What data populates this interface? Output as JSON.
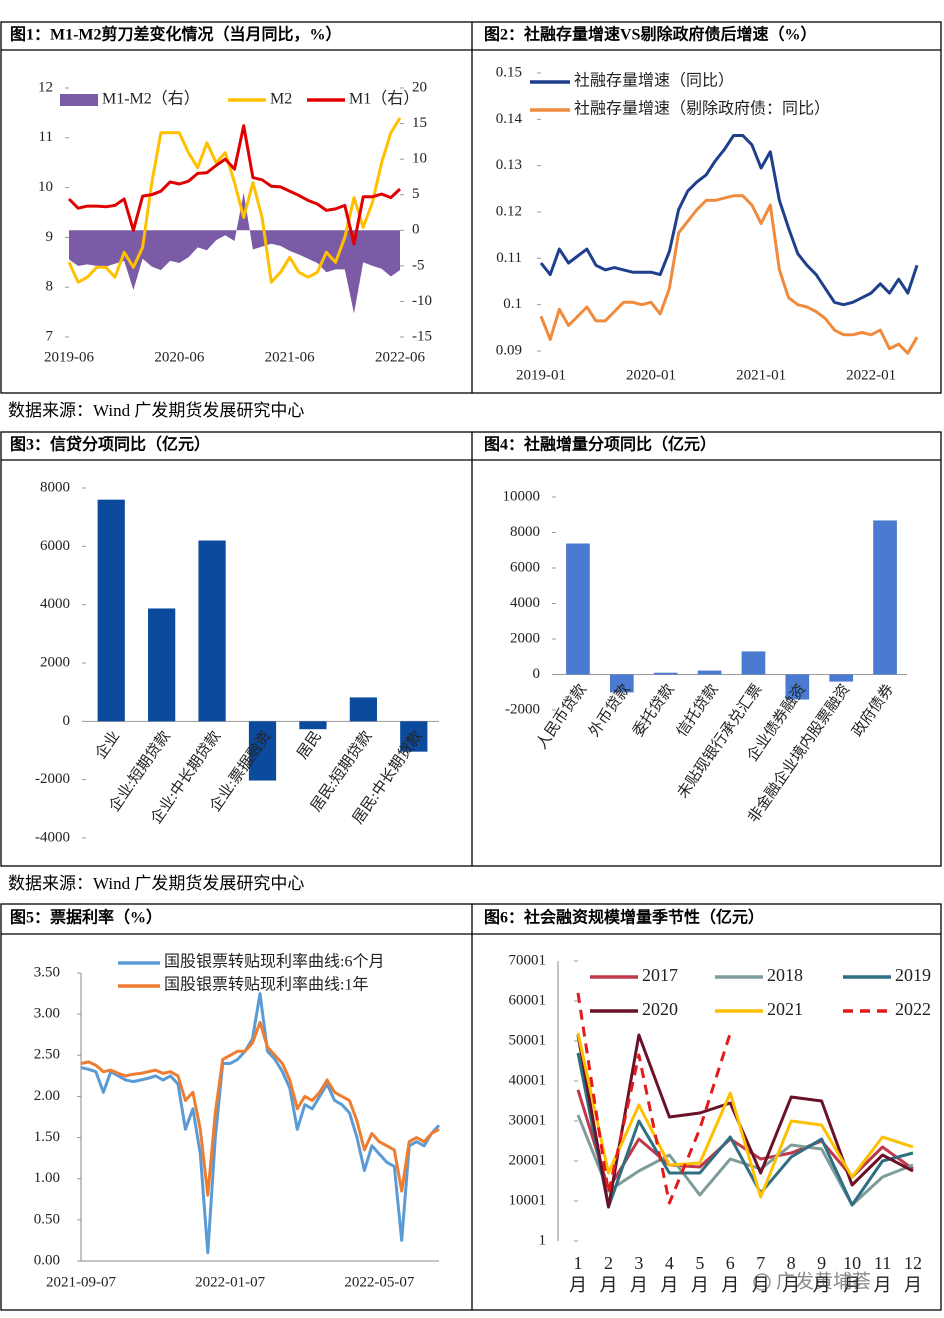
{
  "chart_data": [
    {
      "type": "line",
      "title": "图1：M1-M2剪刀差变化情况（当月同比，%）",
      "categories": [
        "2019-06",
        null,
        null,
        null,
        null,
        null,
        null,
        null,
        null,
        null,
        null,
        null,
        "2020-06",
        null,
        null,
        null,
        null,
        null,
        null,
        null,
        null,
        null,
        null,
        null,
        "2021-06",
        null,
        null,
        null,
        null,
        null,
        null,
        null,
        null,
        null,
        null,
        null,
        "2022-06"
      ],
      "ylim": [
        7,
        12
      ],
      "yticks": [
        7,
        8,
        9,
        10,
        11,
        12
      ],
      "y2lim": [
        -15,
        20
      ],
      "y2ticks": [
        -15,
        -10,
        -5,
        0,
        5,
        10,
        15,
        20
      ],
      "series": [
        {
          "name": "M1-M2（右）",
          "type": "area",
          "axis": "y2",
          "color": "#7b5aa6",
          "values": [
            -4.1,
            -5,
            -4.8,
            -5,
            -5.1,
            -4.7,
            -4.3,
            -8.4,
            -4,
            -5.1,
            -5.6,
            -4.3,
            -4.6,
            -3.8,
            -2.4,
            -2.8,
            -1.4,
            -0.7,
            -1.5,
            5.3,
            -2.7,
            -2.3,
            -1.9,
            -2.2,
            -2.9,
            -3.4,
            -4,
            -4.6,
            -5.9,
            -5.5,
            -5.5,
            -11.7,
            -4.5,
            -5,
            -5.4,
            -6.5,
            -5.6
          ]
        },
        {
          "name": "M2",
          "color": "#ffc000",
          "values": [
            8.5,
            8.1,
            8.2,
            8.4,
            8.4,
            8.2,
            8.7,
            8.4,
            8.8,
            10.1,
            11.1,
            11.1,
            11.1,
            10.7,
            10.4,
            10.9,
            10.5,
            10.7,
            10.1,
            9.4,
            10.1,
            9.4,
            8.1,
            8.3,
            8.6,
            8.3,
            8.2,
            8.3,
            8.7,
            8.5,
            9,
            9.8,
            9.2,
            9.7,
            10.5,
            11.1,
            11.4
          ]
        },
        {
          "name": "M1（右）",
          "axis": "y2",
          "color": "#e00000",
          "values": [
            4.4,
            3.1,
            3.4,
            3.4,
            3.3,
            3.5,
            4.4,
            0,
            4.8,
            5,
            5.5,
            6.8,
            6.5,
            6.9,
            8,
            8.1,
            9.1,
            10,
            8.6,
            14.7,
            7.4,
            7.1,
            6.2,
            6.1,
            5.5,
            4.9,
            4.2,
            3.7,
            2.8,
            3,
            3.5,
            -1.9,
            4.7,
            4.7,
            5.1,
            4.6,
            5.8
          ]
        }
      ]
    },
    {
      "type": "line",
      "title": "图2：社融存量增速VS剔除政府债后增速（%）",
      "categories": [
        "2019-01",
        null,
        null,
        null,
        null,
        null,
        null,
        null,
        null,
        null,
        null,
        null,
        "2020-01",
        null,
        null,
        null,
        null,
        null,
        null,
        null,
        null,
        null,
        null,
        null,
        "2021-01",
        null,
        null,
        null,
        null,
        null,
        null,
        null,
        null,
        null,
        null,
        null,
        "2022-01",
        null,
        null,
        null,
        null,
        null
      ],
      "ylim": [
        0.09,
        0.15
      ],
      "yticks": [
        0.09,
        0.1,
        0.11,
        0.12,
        0.13,
        0.14,
        0.15
      ],
      "series": [
        {
          "name": "社融存量增速（同比）",
          "color": "#1f3f8c",
          "values": [
            0.109,
            0.1065,
            0.112,
            0.109,
            0.1105,
            0.112,
            0.1085,
            0.1075,
            0.108,
            0.1075,
            0.107,
            0.107,
            0.107,
            0.1065,
            0.1115,
            0.1205,
            0.1245,
            0.1265,
            0.128,
            0.131,
            0.1335,
            0.1365,
            0.1365,
            0.1345,
            0.1295,
            0.133,
            0.1225,
            0.1165,
            0.111,
            0.1085,
            0.1065,
            0.1035,
            0.1005,
            0.1,
            0.1005,
            0.1015,
            0.1025,
            0.1045,
            0.1025,
            0.1055,
            0.1025,
            0.1085
          ]
        },
        {
          "name": "社融存量增速（剔除政府债：同比）",
          "color": "#f08a3c",
          "values": [
            0.0975,
            0.0925,
            0.099,
            0.0955,
            0.0975,
            0.0995,
            0.0965,
            0.0965,
            0.0985,
            0.1005,
            0.1005,
            0.1,
            0.1005,
            0.098,
            0.1035,
            0.1155,
            0.118,
            0.1205,
            0.1225,
            0.1225,
            0.123,
            0.1235,
            0.1235,
            0.1215,
            0.1175,
            0.1215,
            0.1075,
            0.1015,
            0.1,
            0.0995,
            0.0985,
            0.097,
            0.0945,
            0.0935,
            0.0935,
            0.094,
            0.0935,
            0.0945,
            0.0905,
            0.0915,
            0.0895,
            0.093
          ]
        }
      ]
    },
    {
      "type": "bar",
      "title": "图3：信贷分项同比（亿元）",
      "categories": [
        "企业",
        "企业:短期贷款",
        "企业:中长期贷款",
        "企业:票据融资",
        "居民",
        "居民:短期贷款",
        "居民:中长期贷款"
      ],
      "values": [
        7600,
        3870,
        6200,
        -2030,
        -270,
        820,
        -1040
      ],
      "color": "#0b4a9c",
      "ylim": [
        -4000,
        8000
      ],
      "yticks": [
        -4000,
        -2000,
        0,
        2000,
        4000,
        6000,
        8000
      ]
    },
    {
      "type": "bar",
      "title": "图4：社融增量分项同比（亿元）",
      "categories": [
        "人民币贷款",
        "外币贷款",
        "委托贷款",
        "信托贷款",
        "未贴现银行承兑汇票",
        "企业债券融资",
        "非金融企业境内股票融资",
        "政府债券"
      ],
      "values": [
        7380,
        -1010,
        100,
        220,
        1300,
        -1410,
        -400,
        8680
      ],
      "color": "#4a7bd0",
      "ylim": [
        -2000,
        10000
      ],
      "yticks": [
        -2000,
        0,
        2000,
        4000,
        6000,
        8000,
        10000
      ]
    },
    {
      "type": "line",
      "title": "图5：票据利率（%）",
      "categories": [
        "2021-09-07",
        null,
        null,
        null,
        null,
        null,
        null,
        null,
        null,
        null,
        null,
        null,
        null,
        null,
        null,
        null,
        null,
        null,
        null,
        null,
        "2022-01-07",
        null,
        null,
        null,
        null,
        null,
        null,
        null,
        null,
        null,
        null,
        null,
        null,
        null,
        null,
        null,
        null,
        null,
        null,
        null,
        "2022-05-07",
        null,
        null,
        null,
        null,
        null,
        null,
        null,
        null
      ],
      "ylim": [
        0,
        3.5
      ],
      "yticks": [
        {
          "value": 0,
          "label": "0.00"
        },
        {
          "value": 0.5,
          "label": "0.50"
        },
        {
          "value": 1,
          "label": "1.00"
        },
        {
          "value": 1.5,
          "label": "1.50"
        },
        {
          "value": 2,
          "label": "2.00"
        },
        {
          "value": 2.5,
          "label": "2.50"
        },
        {
          "value": 3,
          "label": "3.00"
        },
        {
          "value": 3.5,
          "label": "3.50"
        }
      ],
      "series": [
        {
          "name": "国股银票转贴现利率曲线:6个月",
          "color": "#5b9bd5",
          "values": [
            2.35,
            2.33,
            2.3,
            2.05,
            2.3,
            2.25,
            2.2,
            2.18,
            2.2,
            2.22,
            2.25,
            2.2,
            2.25,
            2.15,
            1.6,
            1.85,
            1.3,
            0.1,
            1.5,
            2.4,
            2.4,
            2.45,
            2.55,
            2.7,
            3.25,
            2.55,
            2.45,
            2.3,
            2.1,
            1.6,
            1.9,
            1.85,
            2,
            2.15,
            1.95,
            1.9,
            1.8,
            1.5,
            1.1,
            1.4,
            1.3,
            1.2,
            1.15,
            0.25,
            1.4,
            1.45,
            1.4,
            1.55,
            1.65
          ]
        },
        {
          "name": "国股银票转贴现利率曲线:1年",
          "color": "#ed7d31",
          "values": [
            2.4,
            2.42,
            2.38,
            2.3,
            2.32,
            2.28,
            2.25,
            2.27,
            2.28,
            2.3,
            2.32,
            2.28,
            2.3,
            2.25,
            1.95,
            2.05,
            1.6,
            0.8,
            1.8,
            2.45,
            2.5,
            2.55,
            2.55,
            2.65,
            2.9,
            2.6,
            2.5,
            2.4,
            2.2,
            1.85,
            2,
            1.95,
            2.05,
            2.2,
            2.05,
            2,
            1.95,
            1.7,
            1.35,
            1.55,
            1.45,
            1.4,
            1.35,
            0.85,
            1.45,
            1.5,
            1.45,
            1.55,
            1.6
          ]
        }
      ]
    },
    {
      "type": "line",
      "title": "图6：社会融资规模增量季节性（亿元）",
      "categories": [
        "1月",
        "2月",
        "3月",
        "4月",
        "5月",
        "6月",
        "7月",
        "8月",
        "9月",
        "10月",
        "11月",
        "12月"
      ],
      "ylim": [
        1,
        70001
      ],
      "yticks": [
        1,
        10001,
        20001,
        30001,
        40001,
        50001,
        60001,
        70001
      ],
      "series": [
        {
          "name": "2017",
          "color": "#c0394b",
          "values": [
            37800,
            13000,
            25500,
            19000,
            18500,
            25500,
            20500,
            22000,
            25000,
            16000,
            23500,
            18000
          ]
        },
        {
          "name": "2018",
          "color": "#7f9c9c",
          "values": [
            31500,
            12500,
            17500,
            21500,
            11500,
            20500,
            18000,
            24000,
            23000,
            9000,
            16000,
            19000
          ]
        },
        {
          "name": "2019",
          "color": "#2e6f82",
          "values": [
            47000,
            8500,
            30000,
            17000,
            17000,
            26000,
            12000,
            21000,
            25500,
            9000,
            20000,
            22000
          ]
        },
        {
          "name": "2020",
          "color": "#6b1229",
          "values": [
            51500,
            8500,
            51500,
            31000,
            32000,
            34500,
            17000,
            36000,
            35000,
            14000,
            21500,
            17500
          ]
        },
        {
          "name": "2021",
          "color": "#ffc000",
          "values": [
            52000,
            17000,
            34000,
            19000,
            19500,
            37000,
            11000,
            30000,
            29000,
            16000,
            26000,
            23500
          ]
        },
        {
          "name": "2022",
          "color": "#e31a1c",
          "dash": true,
          "values": [
            62000,
            12000,
            46500,
            9500,
            28000,
            52000,
            null,
            null,
            null,
            null,
            null,
            null
          ]
        }
      ]
    }
  ],
  "sources": [
    "数据来源：Wind  广发期货发展研究中心",
    "数据来源：Wind  广发期货发展研究中心"
  ],
  "watermark": "广发黄埔荟"
}
